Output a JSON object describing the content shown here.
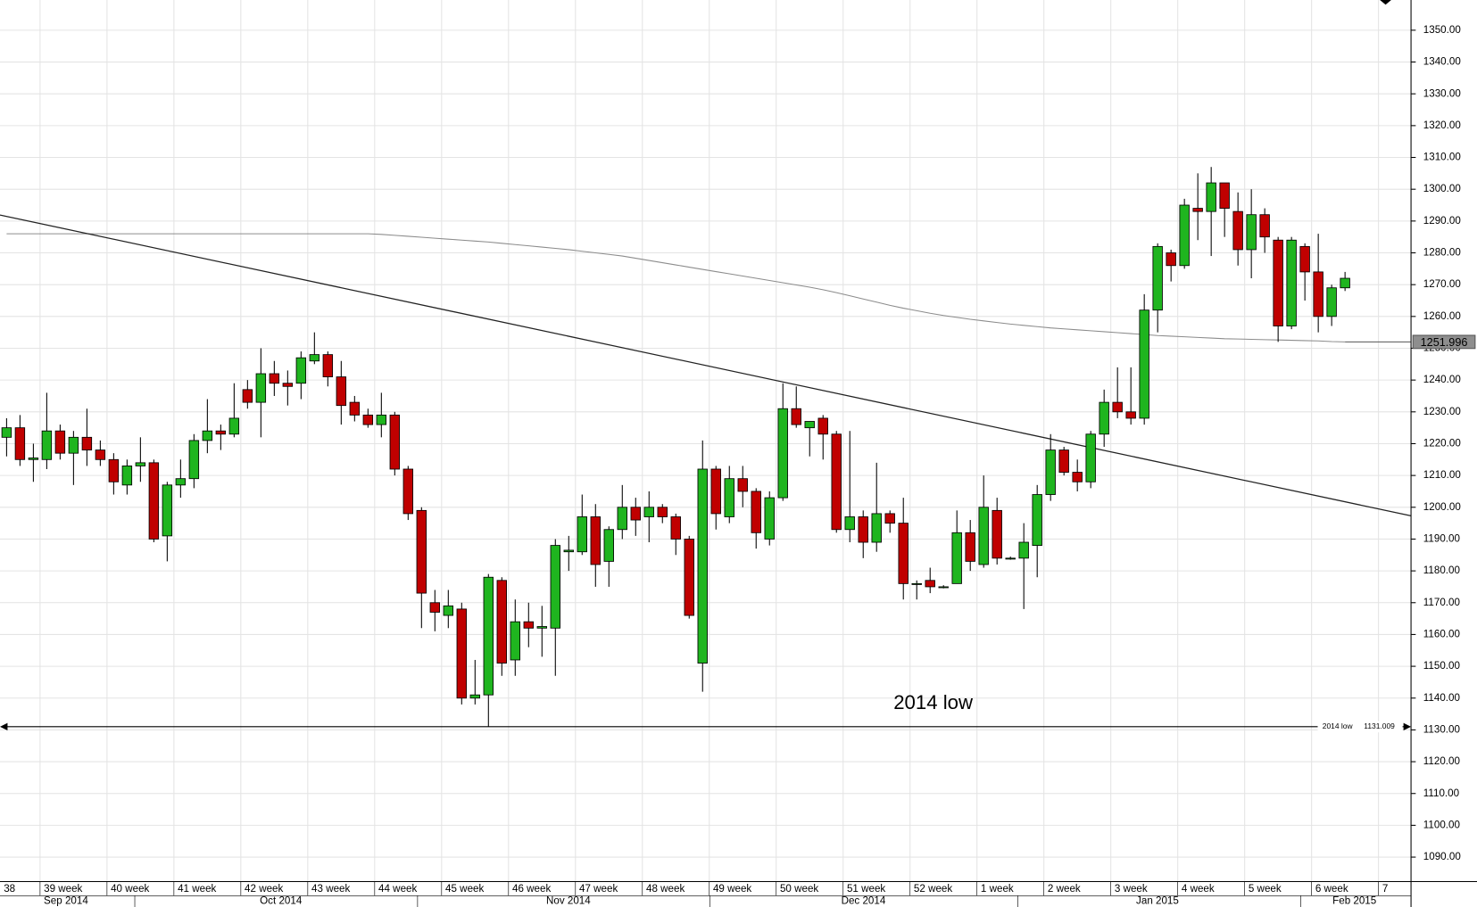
{
  "chart_data": {
    "type": "candlestick",
    "ylim": [
      1082.3,
      1359.5
    ],
    "yticks": [
      {
        "value": 1090,
        "label": "1090.00"
      },
      {
        "value": 1100,
        "label": "1100.00"
      },
      {
        "value": 1110,
        "label": "1110.00"
      },
      {
        "value": 1120,
        "label": "1120.00"
      },
      {
        "value": 1130,
        "label": "1130.00"
      },
      {
        "value": 1140,
        "label": "1140.00"
      },
      {
        "value": 1150,
        "label": "1150.00"
      },
      {
        "value": 1160,
        "label": "1160.00"
      },
      {
        "value": 1170,
        "label": "1170.00"
      },
      {
        "value": 1180,
        "label": "1180.00"
      },
      {
        "value": 1190,
        "label": "1190.00"
      },
      {
        "value": 1200,
        "label": "1200.00"
      },
      {
        "value": 1210,
        "label": "1210.00"
      },
      {
        "value": 1220,
        "label": "1220.00"
      },
      {
        "value": 1230,
        "label": "1230.00"
      },
      {
        "value": 1240,
        "label": "1240.00"
      },
      {
        "value": 1250,
        "label": "1250.00"
      },
      {
        "value": 1260,
        "label": "1260.00"
      },
      {
        "value": 1270,
        "label": "1270.00"
      },
      {
        "value": 1280,
        "label": "1280.00"
      },
      {
        "value": 1290,
        "label": "1290.00"
      },
      {
        "value": 1300,
        "label": "1300.00"
      },
      {
        "value": 1310,
        "label": "1310.00"
      },
      {
        "value": 1320,
        "label": "1320.00"
      },
      {
        "value": 1330,
        "label": "1330.00"
      },
      {
        "value": 1340,
        "label": "1340.00"
      },
      {
        "value": 1350,
        "label": "1350.00"
      }
    ],
    "grid": true,
    "up_color": "#1fb51f",
    "down_color": "#c00000",
    "weeks": [
      "38",
      "39 week",
      "40 week",
      "41 week",
      "42 week",
      "43 week",
      "44 week",
      "45 week",
      "46 week",
      "47 week",
      "48 week",
      "49 week",
      "50 week",
      "51 week",
      "52 week",
      "1 week",
      "2 week",
      "3 week",
      "4 week",
      "5 week",
      "6 week",
      "7"
    ],
    "months": [
      "Sep 2014",
      "Oct 2014",
      "Nov 2014",
      "Dec 2014",
      "Jan 2015",
      "Feb 2015"
    ],
    "open": [
      1222,
      1225,
      1215,
      1215,
      1224,
      1217,
      1222,
      1218,
      1215,
      1207,
      1213,
      1214,
      1191,
      1207,
      1209,
      1221,
      1224,
      1223,
      1237,
      1233,
      1242,
      1239,
      1239,
      1246,
      1248,
      1241,
      1233,
      1229,
      1226,
      1229,
      1212,
      1199,
      1170,
      1166,
      1168,
      1140,
      1141,
      1177,
      1152,
      1164,
      1162,
      1162,
      1186,
      1186,
      1197,
      1183,
      1193,
      1200,
      1197,
      1200,
      1197,
      1190,
      1151,
      1212,
      1197,
      1209,
      1205,
      1190,
      1203,
      1231,
      1225,
      1228,
      1223,
      1193,
      1197,
      1189,
      1198,
      1195,
      1176,
      1177,
      1175,
      1176,
      1192,
      1182,
      1199,
      1184,
      1184,
      1188,
      1204,
      1218,
      1211,
      1208,
      1223,
      1233,
      1230,
      1228,
      1262,
      1280,
      1276,
      1294,
      1293,
      1302,
      1293,
      1281,
      1292,
      1284,
      1257,
      1282,
      1274,
      1260,
      1269
    ],
    "high": [
      1228,
      1229,
      1220,
      1236,
      1226,
      1224,
      1231,
      1221,
      1217,
      1215,
      1222,
      1215,
      1208,
      1215,
      1223,
      1234,
      1226,
      1239,
      1240,
      1250,
      1246,
      1243,
      1249,
      1255,
      1249,
      1246,
      1235,
      1231,
      1236,
      1230,
      1213,
      1200,
      1174,
      1174,
      1170,
      1152,
      1179,
      1178,
      1171,
      1170,
      1169,
      1190,
      1191,
      1204,
      1201,
      1194,
      1207,
      1203,
      1205,
      1201,
      1198,
      1191,
      1221,
      1213,
      1213,
      1213,
      1206,
      1205,
      1239,
      1238,
      1227,
      1229,
      1224,
      1224,
      1199,
      1214,
      1199,
      1203,
      1177,
      1181,
      1175.5,
      1199,
      1196,
      1210,
      1203,
      1184.5,
      1195,
      1207,
      1223,
      1219,
      1215,
      1224,
      1237,
      1244,
      1244,
      1267,
      1283,
      1281,
      1297,
      1305,
      1307,
      1302,
      1299,
      1300,
      1294,
      1285,
      1285,
      1283,
      1286,
      1270,
      1274
    ],
    "low": [
      1216,
      1213,
      1208,
      1212,
      1215,
      1207,
      1213,
      1213,
      1204,
      1204,
      1208,
      1189,
      1183,
      1203,
      1206,
      1217,
      1218,
      1222,
      1231,
      1222,
      1235,
      1232,
      1234,
      1245,
      1238,
      1226,
      1227,
      1225,
      1222,
      1210,
      1196,
      1162,
      1161,
      1162,
      1138,
      1138,
      1131,
      1147,
      1147,
      1156,
      1153,
      1147,
      1180,
      1185,
      1175,
      1175,
      1190,
      1191,
      1189,
      1195,
      1185,
      1165,
      1142,
      1193,
      1195,
      1200,
      1187,
      1188,
      1202,
      1225,
      1216,
      1215,
      1192,
      1189,
      1184,
      1186,
      1192,
      1171,
      1171,
      1173,
      1174.5,
      1176,
      1180,
      1181,
      1182,
      1183.5,
      1168,
      1178,
      1202,
      1210,
      1205,
      1206,
      1219,
      1228,
      1226,
      1226,
      1255,
      1271,
      1275,
      1284,
      1279,
      1285,
      1276,
      1272,
      1280,
      1252,
      1256,
      1265,
      1255,
      1257,
      1268
    ],
    "close": [
      1225,
      1215,
      1215.5,
      1224,
      1217,
      1222,
      1218,
      1215,
      1208,
      1213,
      1214,
      1190,
      1207,
      1209,
      1221,
      1224,
      1223,
      1228,
      1233,
      1242,
      1239,
      1238,
      1247,
      1248,
      1241,
      1232,
      1229,
      1226,
      1229,
      1212,
      1198,
      1173,
      1167,
      1169,
      1140,
      1141,
      1178,
      1151,
      1164,
      1162,
      1162.5,
      1188,
      1186.5,
      1197,
      1182,
      1193,
      1200,
      1196,
      1200,
      1197,
      1190,
      1166,
      1212,
      1198,
      1209,
      1205,
      1192,
      1203,
      1231,
      1226,
      1227,
      1223,
      1193,
      1197,
      1189,
      1198,
      1195,
      1176,
      1176,
      1175,
      1175,
      1192,
      1183,
      1200,
      1184,
      1184,
      1189,
      1204,
      1218,
      1211,
      1208,
      1223,
      1233,
      1230,
      1228,
      1262,
      1282,
      1276,
      1295,
      1293,
      1302,
      1294,
      1281,
      1292,
      1285,
      1257,
      1284,
      1274,
      1260,
      1269,
      1272
    ],
    "moving_average": [
      1286,
      1286,
      1286,
      1286,
      1286,
      1286,
      1286,
      1286,
      1286,
      1286,
      1286,
      1286,
      1286,
      1286,
      1286,
      1286,
      1286,
      1286,
      1286,
      1286,
      1286,
      1286,
      1286,
      1286,
      1286,
      1286,
      1286,
      1286,
      1285.8,
      1285.5,
      1285.2,
      1284.9,
      1284.6,
      1284.3,
      1284.0,
      1283.7,
      1283.4,
      1283.0,
      1282.6,
      1282.2,
      1281.8,
      1281.4,
      1281.0,
      1280.5,
      1280.0,
      1279.5,
      1279.0,
      1278.3,
      1277.6,
      1276.9,
      1276.2,
      1275.5,
      1274.8,
      1274.1,
      1273.4,
      1272.7,
      1272.0,
      1271.3,
      1270.6,
      1269.9,
      1269.2,
      1268.4,
      1267.5,
      1266.5,
      1265.5,
      1264.5,
      1263.5,
      1262.6,
      1261.8,
      1261.0,
      1260.3,
      1259.7,
      1259.1,
      1258.6,
      1258.1,
      1257.6,
      1257.2,
      1256.8,
      1256.4,
      1256.1,
      1255.8,
      1255.5,
      1255.2,
      1254.9,
      1254.6,
      1254.3,
      1254.0,
      1253.8,
      1253.6,
      1253.4,
      1253.2,
      1253.0,
      1252.9,
      1252.8,
      1252.7,
      1252.6,
      1252.5,
      1252.4,
      1252.3,
      1252.1,
      1252.0
    ],
    "last_price": 1251.996,
    "trendline": [
      1291.9,
      1197.3
    ],
    "low_line": {
      "label": "2014 low",
      "value": 1131.009
    },
    "annotation": "2014 low"
  }
}
